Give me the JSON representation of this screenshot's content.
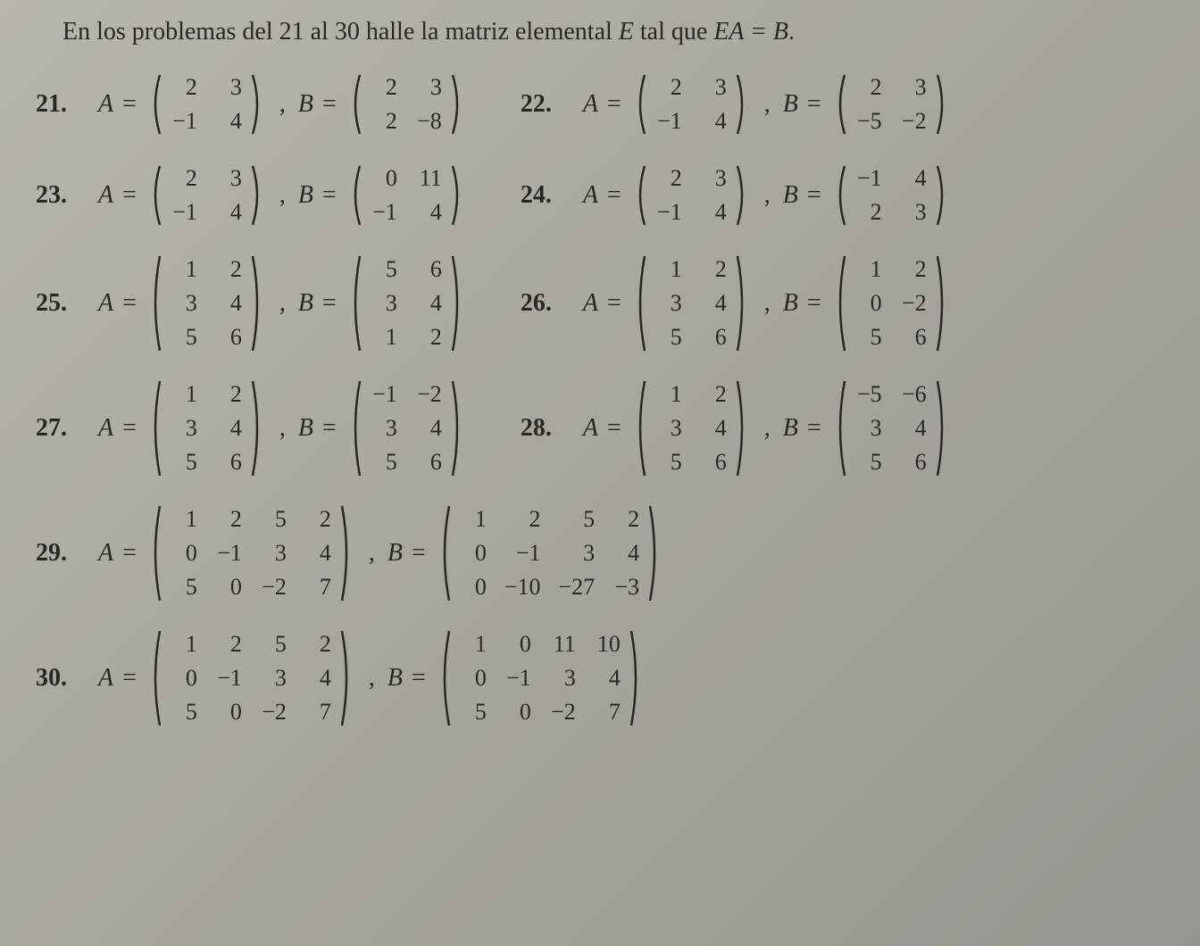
{
  "instruction_prefix": "En los problemas del 21 al 30 halle la matriz elemental ",
  "instruction_var": "E",
  "instruction_mid": " tal que ",
  "instruction_eq": "EA = B",
  "instruction_suffix": ".",
  "problems": [
    {
      "num": "21.",
      "A": {
        "rows": 2,
        "cols": 2,
        "cells": [
          "2",
          "3",
          "−1",
          "4"
        ]
      },
      "B": {
        "rows": 2,
        "cols": 2,
        "cells": [
          "2",
          "3",
          "2",
          "−8"
        ]
      }
    },
    {
      "num": "22.",
      "A": {
        "rows": 2,
        "cols": 2,
        "cells": [
          "2",
          "3",
          "−1",
          "4"
        ]
      },
      "B": {
        "rows": 2,
        "cols": 2,
        "cells": [
          "2",
          "3",
          "−5",
          "−2"
        ]
      }
    },
    {
      "num": "23.",
      "A": {
        "rows": 2,
        "cols": 2,
        "cells": [
          "2",
          "3",
          "−1",
          "4"
        ]
      },
      "B": {
        "rows": 2,
        "cols": 2,
        "cells": [
          "0",
          "11",
          "−1",
          "4"
        ]
      }
    },
    {
      "num": "24.",
      "A": {
        "rows": 2,
        "cols": 2,
        "cells": [
          "2",
          "3",
          "−1",
          "4"
        ]
      },
      "B": {
        "rows": 2,
        "cols": 2,
        "cells": [
          "−1",
          "4",
          "2",
          "3"
        ]
      }
    },
    {
      "num": "25.",
      "A": {
        "rows": 3,
        "cols": 2,
        "cells": [
          "1",
          "2",
          "3",
          "4",
          "5",
          "6"
        ]
      },
      "B": {
        "rows": 3,
        "cols": 2,
        "cells": [
          "5",
          "6",
          "3",
          "4",
          "1",
          "2"
        ]
      }
    },
    {
      "num": "26.",
      "A": {
        "rows": 3,
        "cols": 2,
        "cells": [
          "1",
          "2",
          "3",
          "4",
          "5",
          "6"
        ]
      },
      "B": {
        "rows": 3,
        "cols": 2,
        "cells": [
          "1",
          "2",
          "0",
          "−2",
          "5",
          "6"
        ]
      }
    },
    {
      "num": "27.",
      "A": {
        "rows": 3,
        "cols": 2,
        "cells": [
          "1",
          "2",
          "3",
          "4",
          "5",
          "6"
        ]
      },
      "B": {
        "rows": 3,
        "cols": 2,
        "cells": [
          "−1",
          "−2",
          "3",
          "4",
          "5",
          "6"
        ]
      }
    },
    {
      "num": "28.",
      "A": {
        "rows": 3,
        "cols": 2,
        "cells": [
          "1",
          "2",
          "3",
          "4",
          "5",
          "6"
        ]
      },
      "B": {
        "rows": 3,
        "cols": 2,
        "cells": [
          "−5",
          "−6",
          "3",
          "4",
          "5",
          "6"
        ]
      }
    },
    {
      "num": "29.",
      "A": {
        "rows": 3,
        "cols": 4,
        "cells": [
          "1",
          "2",
          "5",
          "2",
          "0",
          "−1",
          "3",
          "4",
          "5",
          "0",
          "−2",
          "7"
        ]
      },
      "B": {
        "rows": 3,
        "cols": 4,
        "cells": [
          "1",
          "2",
          "5",
          "2",
          "0",
          "−1",
          "3",
          "4",
          "0",
          "−10",
          "−27",
          "−3"
        ]
      }
    },
    {
      "num": "30.",
      "A": {
        "rows": 3,
        "cols": 4,
        "cells": [
          "1",
          "2",
          "5",
          "2",
          "0",
          "−1",
          "3",
          "4",
          "5",
          "0",
          "−2",
          "7"
        ]
      },
      "B": {
        "rows": 3,
        "cols": 4,
        "cells": [
          "1",
          "0",
          "11",
          "10",
          "0",
          "−1",
          "3",
          "4",
          "5",
          "0",
          "−2",
          "7"
        ]
      }
    }
  ],
  "layout": {
    "pairs": [
      [
        0,
        1
      ],
      [
        2,
        3
      ],
      [
        4,
        5
      ],
      [
        6,
        7
      ]
    ],
    "singles": [
      8,
      9
    ]
  },
  "labels": {
    "A": "A",
    "B": "B",
    "eq": "="
  },
  "colors": {
    "bg": "#a8a59d",
    "text": "#2a2825"
  },
  "font": {
    "family": "Times New Roman",
    "size_body": 28,
    "size_cell": 26
  }
}
